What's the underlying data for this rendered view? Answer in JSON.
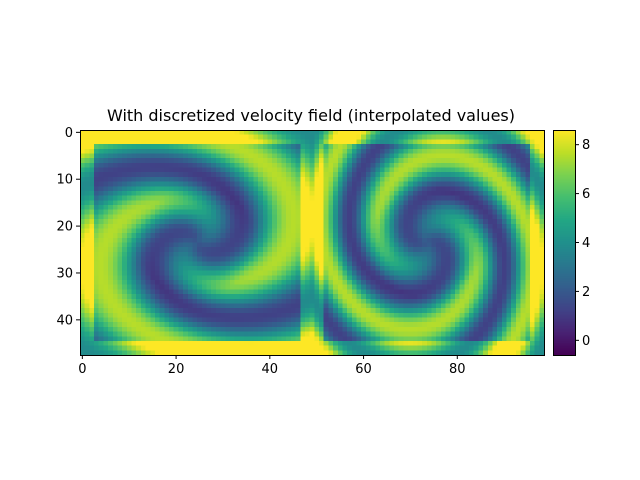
{
  "chart_data": {
    "type": "heatmap",
    "title": "With discretized velocity field (interpolated values)",
    "xlabel": "",
    "ylabel": "",
    "grid_shape": {
      "rows": 48,
      "cols": 99
    },
    "xlim": [
      -0.5,
      98.5
    ],
    "ylim": [
      47.5,
      -0.5
    ],
    "x_ticks": [
      0,
      20,
      40,
      60,
      80
    ],
    "y_ticks": [
      0,
      10,
      20,
      30,
      40
    ],
    "colormap": "viridis",
    "colorbar": {
      "range": [
        -0.6,
        8.6
      ],
      "ticks": [
        0,
        2,
        4,
        6,
        8
      ]
    },
    "grid": false
  }
}
